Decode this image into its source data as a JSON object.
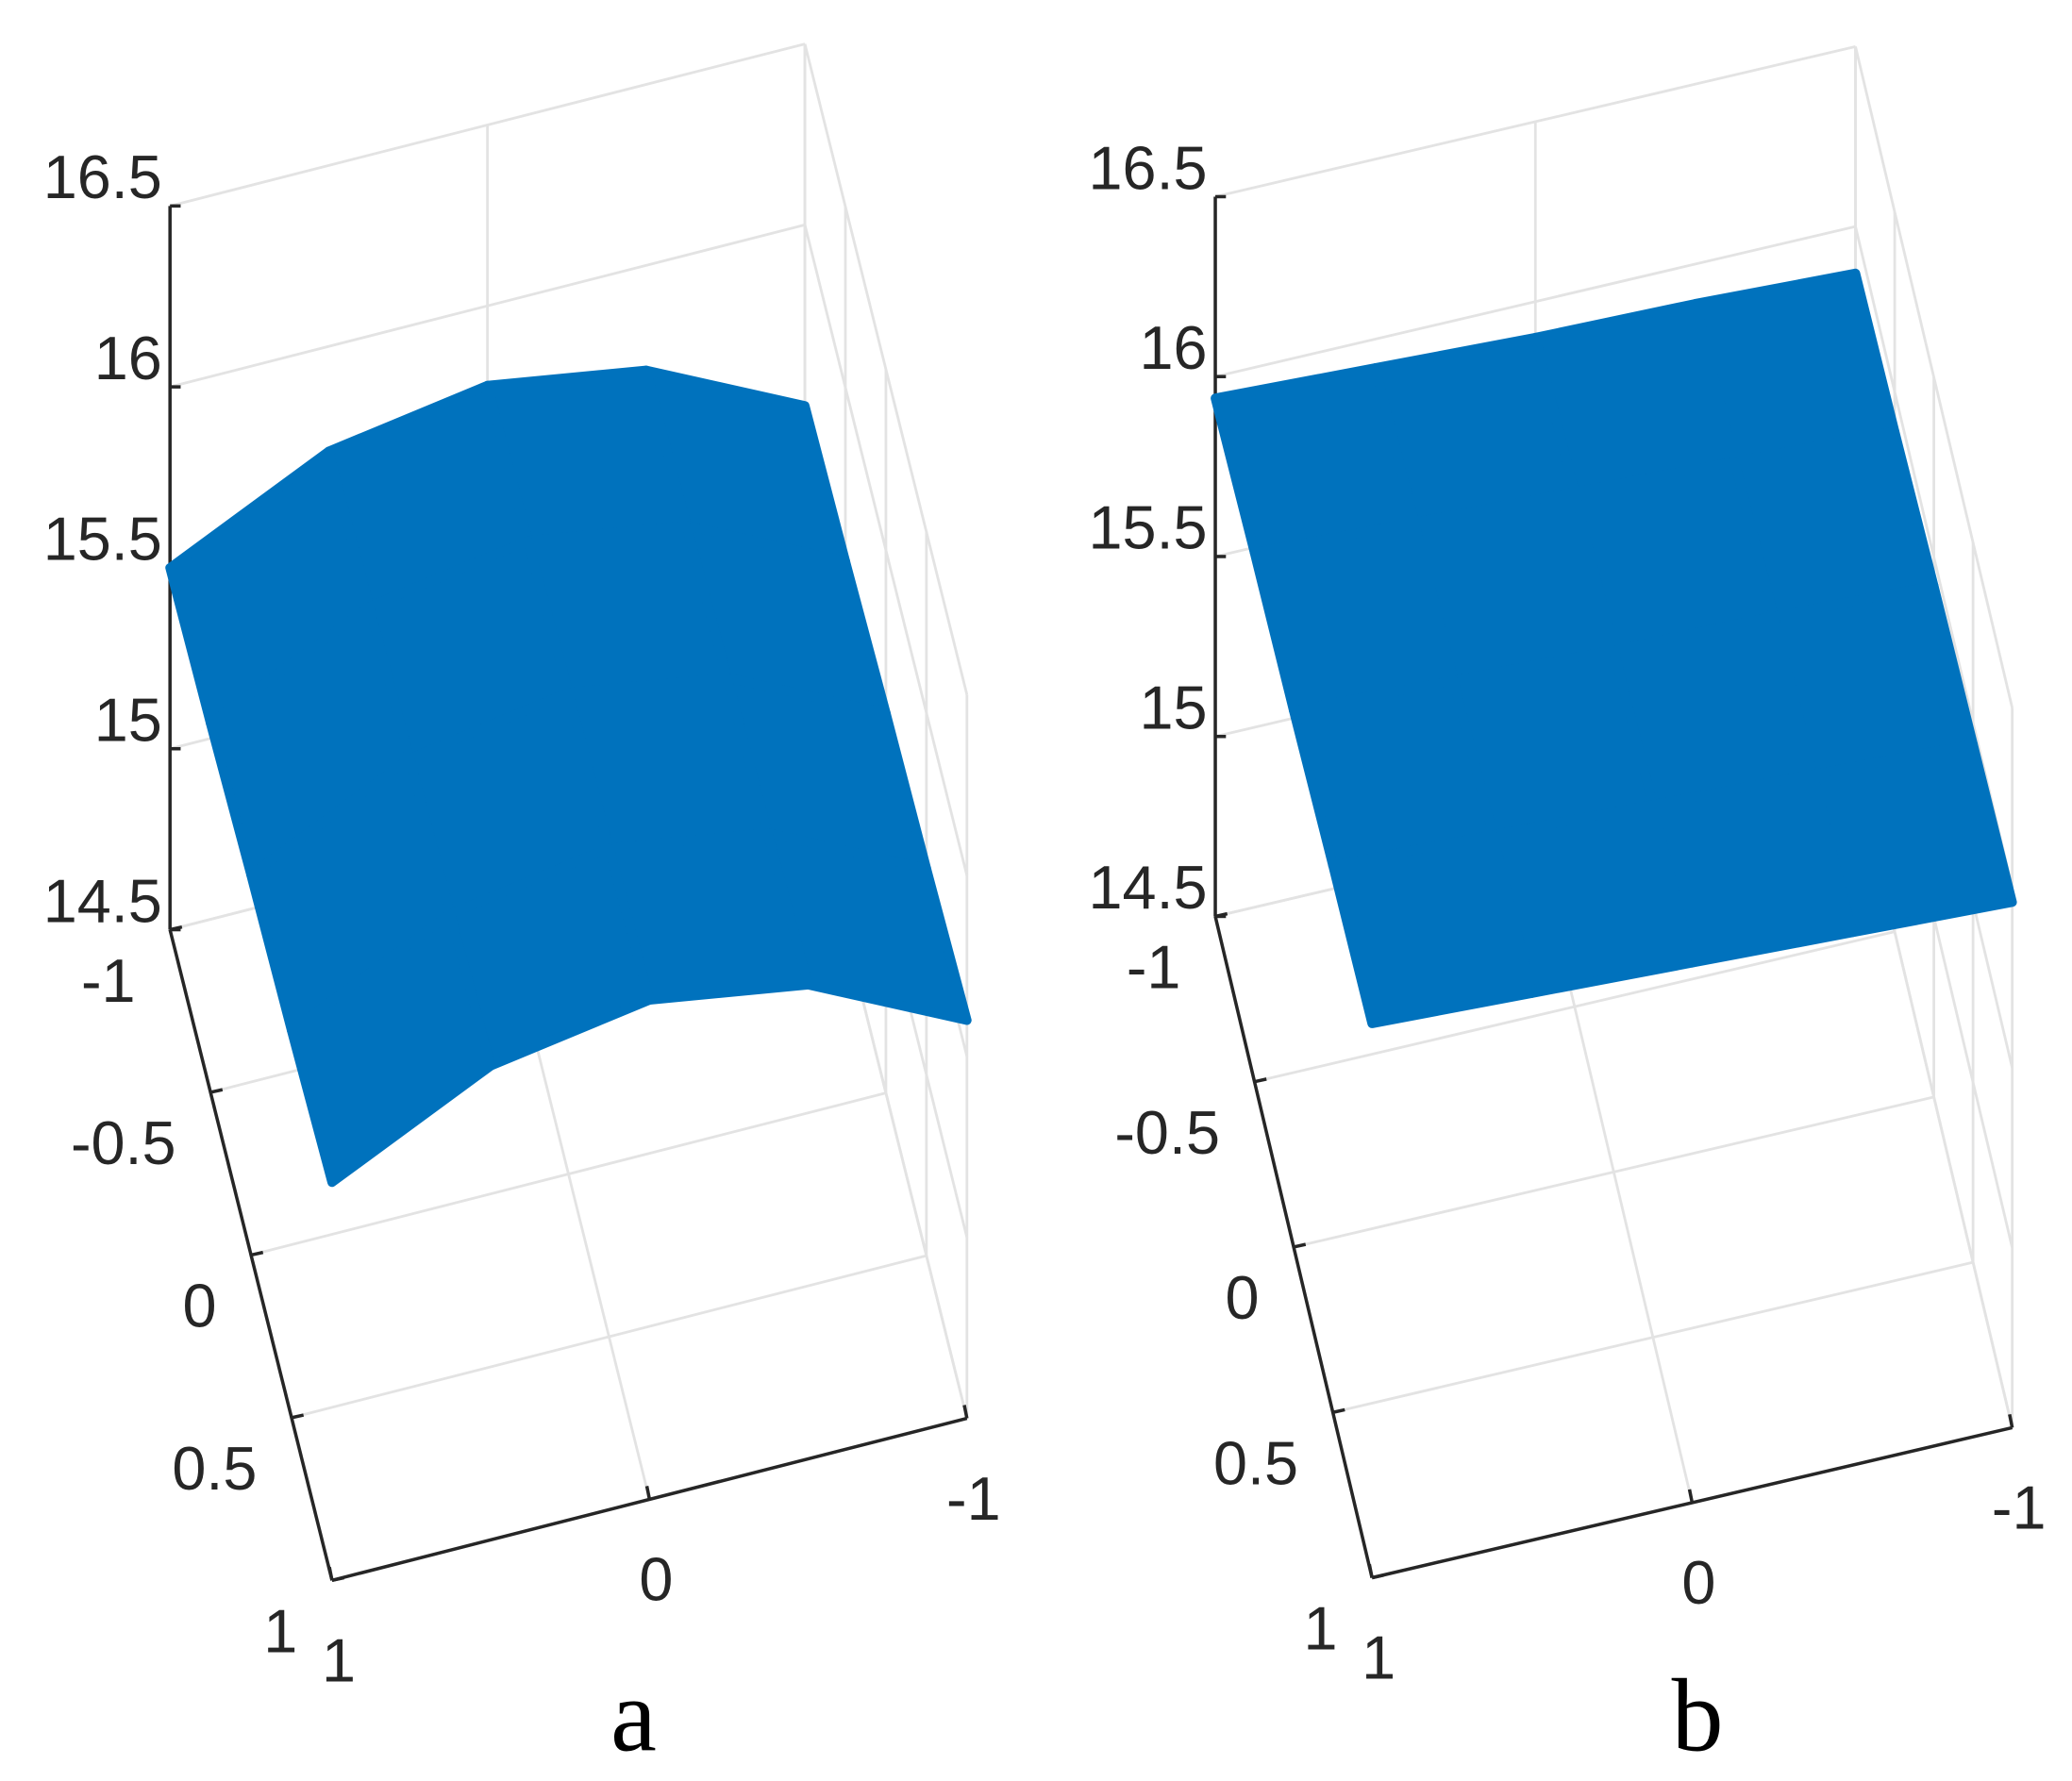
{
  "chart_data": [
    {
      "type": "scatter3d",
      "caption": "a",
      "color": "#0072bd",
      "grid": true,
      "x": [
        -1,
        -0.5,
        0,
        0.5,
        1
      ],
      "y": [
        -1,
        -0.5,
        0,
        0.5,
        1
      ],
      "z": [
        [
          15.5,
          15.71,
          15.78,
          15.71,
          15.5
        ],
        [
          15.52,
          15.73,
          15.8,
          15.73,
          15.52
        ],
        [
          15.55,
          15.76,
          15.83,
          15.76,
          15.55
        ],
        [
          15.57,
          15.78,
          15.85,
          15.78,
          15.57
        ],
        [
          15.6,
          15.81,
          15.88,
          15.81,
          15.6
        ]
      ],
      "xlim": [
        -1,
        1
      ],
      "ylim": [
        -1,
        1
      ],
      "zlim": [
        14.5,
        16.5
      ],
      "xticks": [
        -1,
        0,
        1
      ],
      "yticks": [
        -1,
        -0.5,
        0,
        0.5,
        1
      ],
      "zticks": [
        14.5,
        15,
        15.5,
        16,
        16.5
      ]
    },
    {
      "type": "scatter3d",
      "caption": "b",
      "color": "#0072bd",
      "grid": true,
      "x": [
        -1,
        -0.5,
        0,
        0.5,
        1
      ],
      "y": [
        -1,
        -0.5,
        0,
        0.5,
        1
      ],
      "z": [
        [
          15.87,
          15.89,
          15.9,
          15.92,
          15.94
        ],
        [
          15.89,
          15.91,
          15.93,
          15.95,
          15.97
        ],
        [
          15.92,
          15.94,
          15.95,
          15.97,
          15.99
        ],
        [
          15.94,
          15.96,
          15.98,
          16.0,
          16.02
        ],
        [
          15.96,
          15.98,
          16.0,
          16.02,
          16.04
        ]
      ],
      "xlim": [
        -1,
        1
      ],
      "ylim": [
        -1,
        1
      ],
      "zlim": [
        14.5,
        16.5
      ],
      "xticks": [
        -1,
        0,
        1
      ],
      "yticks": [
        -1,
        -0.5,
        0,
        0.5,
        1
      ],
      "zticks": [
        14.5,
        15,
        15.5,
        16,
        16.5
      ]
    }
  ]
}
